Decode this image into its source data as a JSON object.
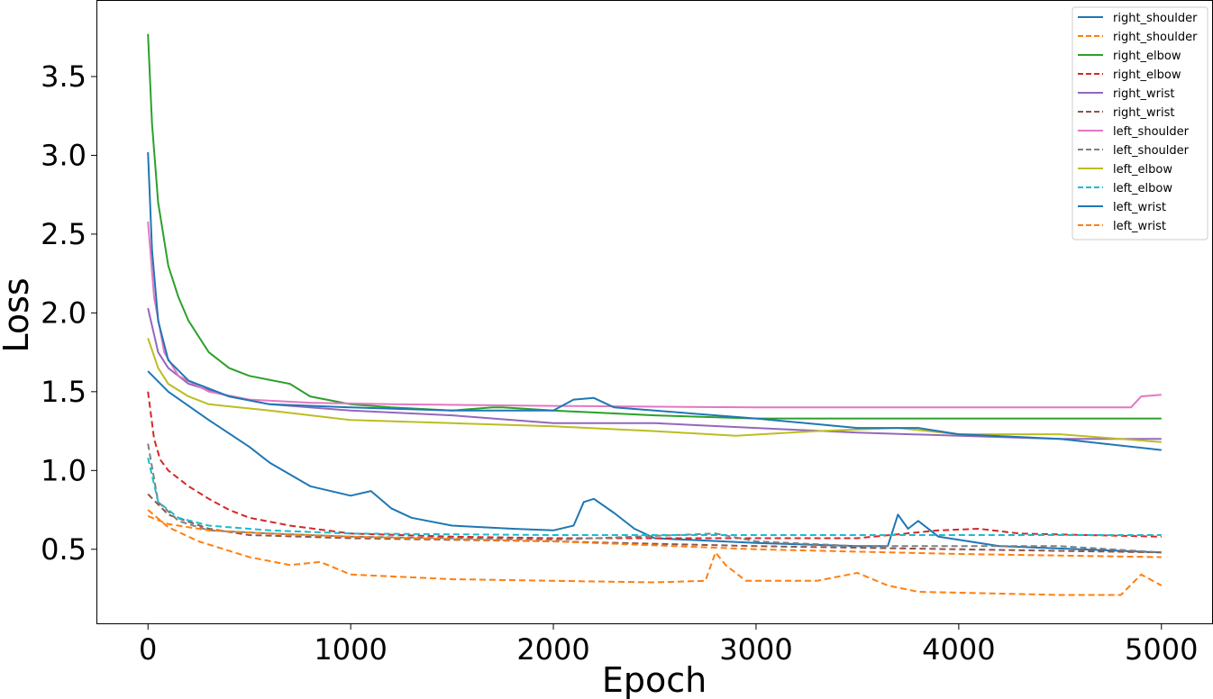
{
  "chart_data": {
    "type": "line",
    "title": "",
    "xlabel": "Epoch",
    "ylabel": "Loss",
    "xlim": [
      -250,
      5250
    ],
    "ylim": [
      0.03,
      3.98
    ],
    "xticks": [
      0,
      1000,
      2000,
      3000,
      4000,
      5000
    ],
    "xtick_labels": [
      "0",
      "1000",
      "2000",
      "3000",
      "4000",
      "5000"
    ],
    "yticks": [
      0.5,
      1.0,
      1.5,
      2.0,
      2.5,
      3.0,
      3.5
    ],
    "ytick_labels": [
      "0.5",
      "1.0",
      "1.5",
      "2.0",
      "2.5",
      "3.0",
      "3.5"
    ],
    "grid": false,
    "legend_position": "top-right",
    "series": [
      {
        "name": "right_shoulder",
        "color": "#1f77b4",
        "dash": "solid",
        "points": [
          [
            0,
            1.63
          ],
          [
            100,
            1.5
          ],
          [
            300,
            1.32
          ],
          [
            500,
            1.15
          ],
          [
            600,
            1.05
          ],
          [
            800,
            0.9
          ],
          [
            1000,
            0.84
          ],
          [
            1100,
            0.87
          ],
          [
            1200,
            0.76
          ],
          [
            1300,
            0.7
          ],
          [
            1500,
            0.65
          ],
          [
            1800,
            0.63
          ],
          [
            2000,
            0.62
          ],
          [
            2100,
            0.65
          ],
          [
            2150,
            0.8
          ],
          [
            2200,
            0.82
          ],
          [
            2300,
            0.73
          ],
          [
            2400,
            0.63
          ],
          [
            2500,
            0.57
          ],
          [
            3000,
            0.54
          ],
          [
            3500,
            0.52
          ],
          [
            3650,
            0.52
          ],
          [
            3700,
            0.72
          ],
          [
            3750,
            0.63
          ],
          [
            3800,
            0.68
          ],
          [
            3900,
            0.58
          ],
          [
            4200,
            0.52
          ],
          [
            5000,
            0.48
          ]
        ]
      },
      {
        "name": "right_shoulder",
        "color": "#ff7f0e",
        "dash": "dashed",
        "points": [
          [
            0,
            0.75
          ],
          [
            100,
            0.64
          ],
          [
            250,
            0.55
          ],
          [
            500,
            0.45
          ],
          [
            700,
            0.4
          ],
          [
            850,
            0.42
          ],
          [
            1000,
            0.34
          ],
          [
            1500,
            0.31
          ],
          [
            2000,
            0.3
          ],
          [
            2500,
            0.29
          ],
          [
            2750,
            0.3
          ],
          [
            2800,
            0.48
          ],
          [
            2850,
            0.4
          ],
          [
            2950,
            0.3
          ],
          [
            3300,
            0.3
          ],
          [
            3500,
            0.35
          ],
          [
            3650,
            0.27
          ],
          [
            3800,
            0.23
          ],
          [
            4500,
            0.21
          ],
          [
            4800,
            0.21
          ],
          [
            4900,
            0.34
          ],
          [
            5000,
            0.27
          ]
        ]
      },
      {
        "name": "right_elbow",
        "color": "#2ca02c",
        "dash": "solid",
        "points": [
          [
            0,
            3.77
          ],
          [
            20,
            3.2
          ],
          [
            50,
            2.7
          ],
          [
            100,
            2.3
          ],
          [
            150,
            2.1
          ],
          [
            200,
            1.95
          ],
          [
            300,
            1.75
          ],
          [
            400,
            1.65
          ],
          [
            500,
            1.6
          ],
          [
            700,
            1.55
          ],
          [
            800,
            1.47
          ],
          [
            1000,
            1.42
          ],
          [
            1200,
            1.4
          ],
          [
            1500,
            1.38
          ],
          [
            1700,
            1.4
          ],
          [
            1750,
            1.4
          ],
          [
            2000,
            1.38
          ],
          [
            2500,
            1.35
          ],
          [
            3000,
            1.33
          ],
          [
            5000,
            1.33
          ]
        ]
      },
      {
        "name": "right_elbow",
        "color": "#d62728",
        "dash": "dashed",
        "points": [
          [
            0,
            1.5
          ],
          [
            30,
            1.2
          ],
          [
            60,
            1.07
          ],
          [
            100,
            1.0
          ],
          [
            200,
            0.9
          ],
          [
            300,
            0.82
          ],
          [
            400,
            0.75
          ],
          [
            500,
            0.7
          ],
          [
            700,
            0.65
          ],
          [
            1000,
            0.6
          ],
          [
            1500,
            0.58
          ],
          [
            2000,
            0.57
          ],
          [
            3000,
            0.57
          ],
          [
            3500,
            0.57
          ],
          [
            3900,
            0.62
          ],
          [
            4100,
            0.63
          ],
          [
            4300,
            0.6
          ],
          [
            5000,
            0.58
          ]
        ]
      },
      {
        "name": "right_wrist",
        "color": "#9467bd",
        "dash": "solid",
        "points": [
          [
            0,
            2.03
          ],
          [
            50,
            1.75
          ],
          [
            100,
            1.65
          ],
          [
            200,
            1.55
          ],
          [
            400,
            1.47
          ],
          [
            600,
            1.42
          ],
          [
            1000,
            1.38
          ],
          [
            1500,
            1.35
          ],
          [
            2000,
            1.3
          ],
          [
            2500,
            1.3
          ],
          [
            3000,
            1.27
          ],
          [
            3500,
            1.24
          ],
          [
            4000,
            1.22
          ],
          [
            4500,
            1.2
          ],
          [
            5000,
            1.2
          ]
        ]
      },
      {
        "name": "right_wrist",
        "color": "#8c564b",
        "dash": "dashed",
        "points": [
          [
            0,
            0.85
          ],
          [
            100,
            0.72
          ],
          [
            300,
            0.63
          ],
          [
            500,
            0.59
          ],
          [
            1000,
            0.57
          ],
          [
            2000,
            0.55
          ],
          [
            3000,
            0.52
          ],
          [
            4000,
            0.5
          ],
          [
            5000,
            0.48
          ]
        ]
      },
      {
        "name": "left_shoulder",
        "color": "#e377c2",
        "dash": "solid",
        "points": [
          [
            0,
            2.58
          ],
          [
            30,
            2.1
          ],
          [
            80,
            1.75
          ],
          [
            150,
            1.6
          ],
          [
            300,
            1.5
          ],
          [
            500,
            1.45
          ],
          [
            800,
            1.43
          ],
          [
            1200,
            1.42
          ],
          [
            2000,
            1.41
          ],
          [
            3000,
            1.4
          ],
          [
            4850,
            1.4
          ],
          [
            4900,
            1.47
          ],
          [
            5000,
            1.48
          ]
        ]
      },
      {
        "name": "left_shoulder",
        "color": "#7f7f7f",
        "dash": "dashed",
        "points": [
          [
            0,
            1.17
          ],
          [
            50,
            0.8
          ],
          [
            150,
            0.68
          ],
          [
            300,
            0.62
          ],
          [
            600,
            0.6
          ],
          [
            1000,
            0.58
          ],
          [
            2000,
            0.56
          ],
          [
            2800,
            0.6
          ],
          [
            3000,
            0.55
          ],
          [
            3500,
            0.52
          ],
          [
            4000,
            0.52
          ],
          [
            4500,
            0.52
          ],
          [
            5000,
            0.48
          ]
        ]
      },
      {
        "name": "left_elbow",
        "color": "#bcbd22",
        "dash": "solid",
        "points": [
          [
            0,
            1.84
          ],
          [
            50,
            1.65
          ],
          [
            100,
            1.55
          ],
          [
            200,
            1.47
          ],
          [
            300,
            1.42
          ],
          [
            600,
            1.38
          ],
          [
            1000,
            1.32
          ],
          [
            1500,
            1.3
          ],
          [
            2000,
            1.28
          ],
          [
            2500,
            1.25
          ],
          [
            2900,
            1.22
          ],
          [
            3300,
            1.25
          ],
          [
            3700,
            1.27
          ],
          [
            4000,
            1.23
          ],
          [
            4500,
            1.23
          ],
          [
            5000,
            1.18
          ]
        ]
      },
      {
        "name": "left_elbow",
        "color": "#17becf",
        "dash": "dashed",
        "points": [
          [
            0,
            1.08
          ],
          [
            50,
            0.8
          ],
          [
            150,
            0.7
          ],
          [
            300,
            0.65
          ],
          [
            600,
            0.62
          ],
          [
            1000,
            0.6
          ],
          [
            2000,
            0.59
          ],
          [
            3000,
            0.59
          ],
          [
            5000,
            0.59
          ]
        ]
      },
      {
        "name": "left_wrist",
        "color": "#1f77b4",
        "dash": "solid",
        "points": [
          [
            0,
            3.02
          ],
          [
            20,
            2.4
          ],
          [
            50,
            1.95
          ],
          [
            100,
            1.7
          ],
          [
            200,
            1.57
          ],
          [
            400,
            1.47
          ],
          [
            600,
            1.42
          ],
          [
            1000,
            1.4
          ],
          [
            1500,
            1.38
          ],
          [
            2000,
            1.38
          ],
          [
            2100,
            1.45
          ],
          [
            2200,
            1.46
          ],
          [
            2300,
            1.4
          ],
          [
            2500,
            1.38
          ],
          [
            3000,
            1.33
          ],
          [
            3500,
            1.27
          ],
          [
            3800,
            1.27
          ],
          [
            4000,
            1.23
          ],
          [
            4500,
            1.2
          ],
          [
            5000,
            1.13
          ]
        ]
      },
      {
        "name": "left_wrist",
        "color": "#ff7f0e",
        "dash": "dashed",
        "points": [
          [
            0,
            0.71
          ],
          [
            100,
            0.66
          ],
          [
            300,
            0.62
          ],
          [
            600,
            0.6
          ],
          [
            1000,
            0.58
          ],
          [
            2000,
            0.55
          ],
          [
            3000,
            0.5
          ],
          [
            4000,
            0.47
          ],
          [
            5000,
            0.45
          ]
        ]
      }
    ]
  }
}
